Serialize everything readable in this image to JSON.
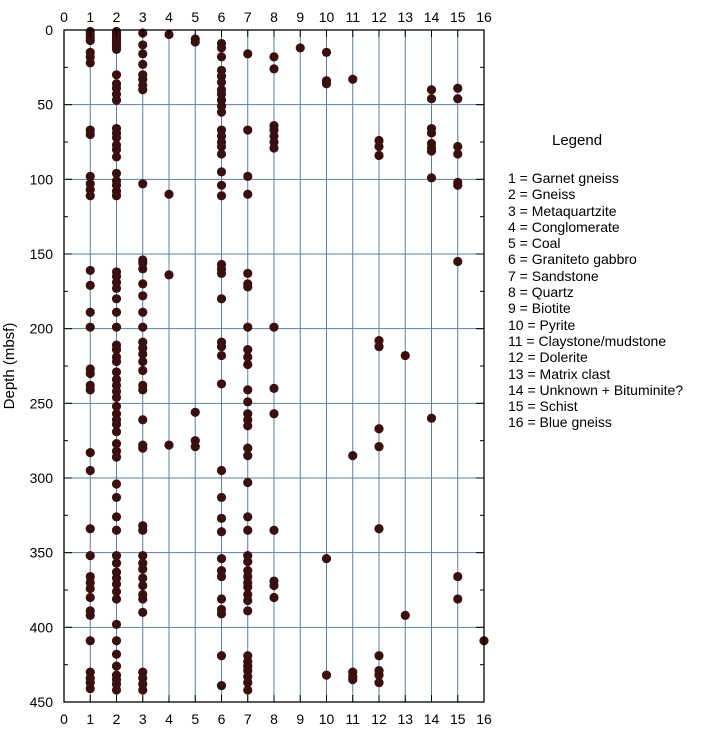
{
  "chart_data": {
    "type": "scatter",
    "title": "",
    "xlabel": "",
    "ylabel": "Depth (mbsf)",
    "xlim": [
      0,
      16
    ],
    "ylim": [
      0,
      450
    ],
    "y_inverted": true,
    "x_ticks": [
      0,
      1,
      2,
      3,
      4,
      5,
      6,
      7,
      8,
      9,
      10,
      11,
      12,
      13,
      14,
      15,
      16
    ],
    "y_ticks": [
      0,
      50,
      100,
      150,
      200,
      250,
      300,
      350,
      400,
      450
    ],
    "x_tick_labels_top_and_bottom": true,
    "grid": "vertical lines at each clast type, horizontal lines every 50 m",
    "colors": {
      "point": "#3a0f0f",
      "grid": "#5c7fa3",
      "axis": "#000000"
    },
    "legend_title": "Legend",
    "legend_position": "right",
    "legend_entries": [
      "1 = Garnet gneiss",
      "2 = Gneiss",
      "3 = Metaquartzite",
      "4 = Conglomerate",
      "5 = Coal",
      "6 = Graniteto gabbro",
      "7 = Sandstone",
      "8 = Quartz",
      "9 = Biotite",
      "10 = Pyrite",
      "11 = Claystone/mudstone",
      "12 = Dolerite",
      "13 = Matrix clast",
      "14 = Unknown + Bituminite?",
      "15 = Schist",
      "16 = Blue gneiss"
    ],
    "series": [
      {
        "x": 1,
        "y": [
          1,
          3,
          5,
          7,
          15,
          18,
          22,
          67,
          70,
          98,
          103,
          107,
          111,
          161,
          171,
          189,
          199,
          227,
          230,
          238,
          241,
          283,
          295,
          334,
          352,
          366,
          370,
          374,
          380,
          389,
          392,
          409,
          430,
          434,
          437,
          441
        ]
      },
      {
        "x": 2,
        "y": [
          1,
          2,
          3,
          4,
          5,
          6,
          7,
          8,
          9,
          10,
          11,
          12,
          13,
          30,
          36,
          39,
          43,
          47,
          66,
          69,
          72,
          77,
          80,
          85,
          96,
          101,
          104,
          108,
          111,
          162,
          165,
          169,
          173,
          180,
          189,
          199,
          211,
          214,
          219,
          222,
          229,
          234,
          238,
          242,
          246,
          252,
          257,
          261,
          264,
          269,
          277,
          282,
          286,
          304,
          313,
          326,
          335,
          352,
          357,
          363,
          367,
          371,
          376,
          381,
          398,
          409,
          418,
          426,
          432,
          435,
          438,
          442
        ]
      },
      {
        "x": 3,
        "y": [
          2,
          10,
          16,
          23,
          30,
          33,
          37,
          40,
          103,
          154,
          156,
          160,
          170,
          178,
          189,
          199,
          209,
          213,
          217,
          222,
          228,
          238,
          241,
          261,
          278,
          280,
          332,
          335,
          352,
          357,
          361,
          367,
          372,
          378,
          381,
          390,
          430,
          434,
          438,
          442
        ]
      },
      {
        "x": 4,
        "y": [
          3,
          110,
          164,
          278
        ]
      },
      {
        "x": 5,
        "y": [
          6,
          8,
          256,
          275,
          279
        ]
      },
      {
        "x": 6,
        "y": [
          9,
          12,
          18,
          27,
          31,
          35,
          40,
          43,
          47,
          51,
          55,
          67,
          71,
          75,
          78,
          83,
          95,
          104,
          111,
          157,
          160,
          163,
          180,
          209,
          212,
          218,
          237,
          295,
          313,
          327,
          336,
          354,
          362,
          366,
          381,
          388,
          391,
          419,
          439
        ]
      },
      {
        "x": 7,
        "y": [
          16,
          67,
          98,
          110,
          163,
          170,
          172,
          199,
          214,
          219,
          224,
          241,
          249,
          257,
          261,
          265,
          280,
          285,
          303,
          326,
          335,
          352,
          356,
          362,
          366,
          370,
          373,
          378,
          382,
          389,
          419,
          423,
          426,
          429,
          433,
          437,
          442
        ]
      },
      {
        "x": 8,
        "y": [
          18,
          26,
          64,
          67,
          71,
          75,
          79,
          199,
          240,
          257,
          335,
          369,
          372,
          380
        ]
      },
      {
        "x": 9,
        "y": [
          12
        ]
      },
      {
        "x": 10,
        "y": [
          15,
          34,
          36,
          354,
          432
        ]
      },
      {
        "x": 11,
        "y": [
          33,
          285,
          430,
          433,
          435
        ]
      },
      {
        "x": 12,
        "y": [
          74,
          78,
          84,
          208,
          212,
          267,
          279,
          334,
          419,
          429,
          432,
          437
        ]
      },
      {
        "x": 13,
        "y": [
          218,
          392
        ]
      },
      {
        "x": 14,
        "y": [
          40,
          46,
          66,
          69,
          76,
          79,
          81,
          99,
          260
        ]
      },
      {
        "x": 15,
        "y": [
          39,
          46,
          78,
          83,
          102,
          104,
          155,
          366,
          381
        ]
      },
      {
        "x": 16,
        "y": [
          409
        ]
      }
    ]
  }
}
